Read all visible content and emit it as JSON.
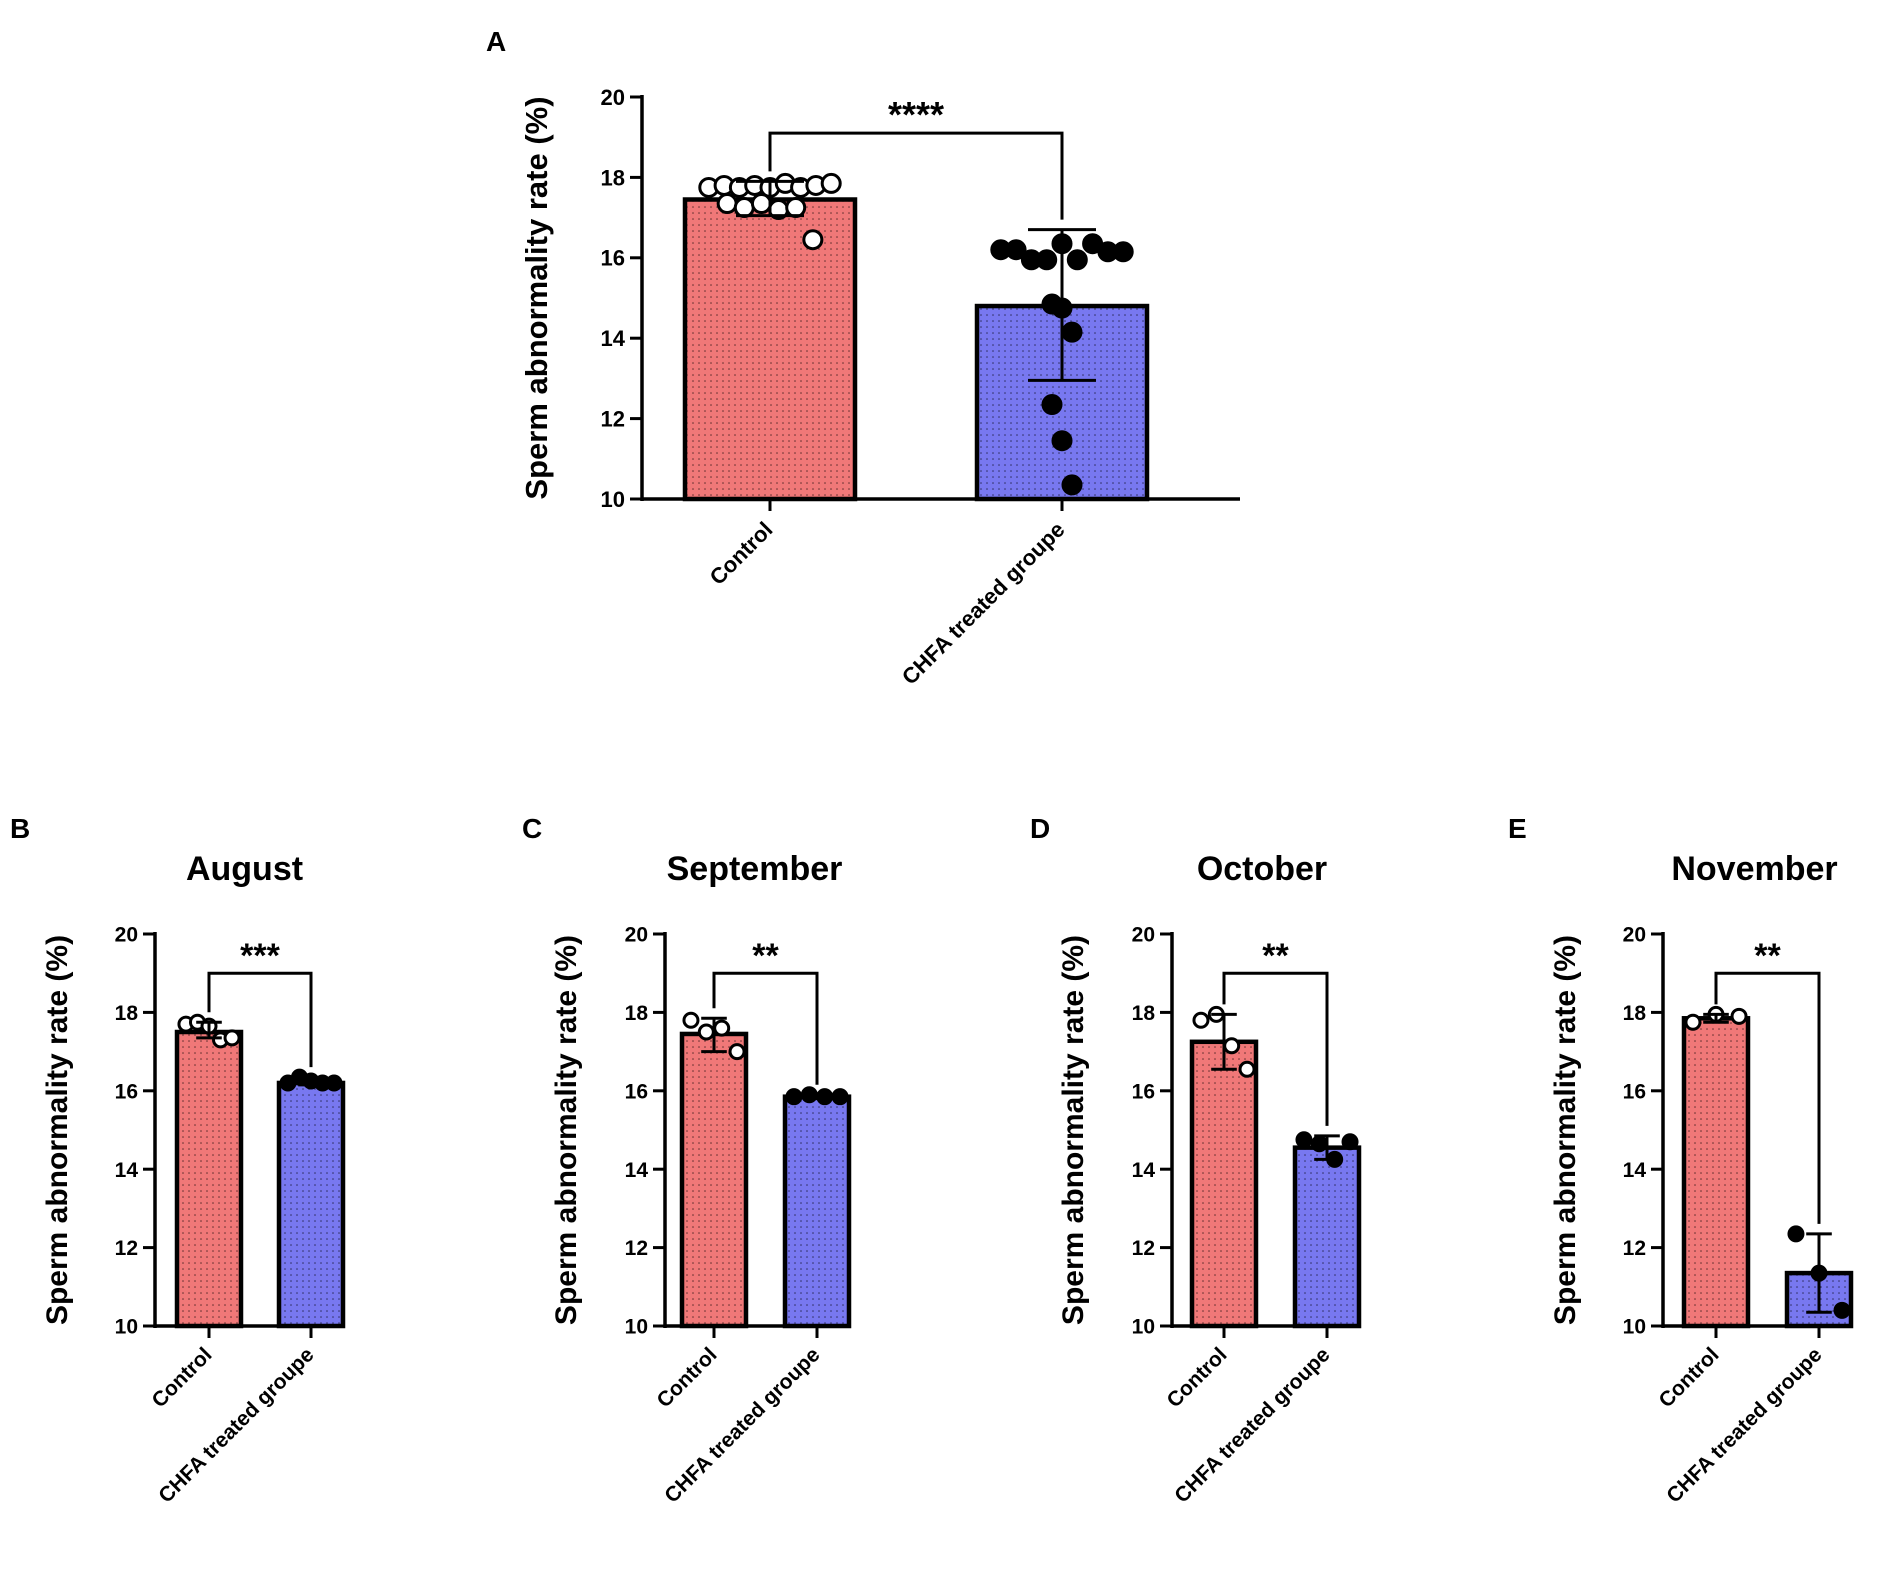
{
  "colors": {
    "control": "#f07878",
    "treated": "#7878f0",
    "axis": "#000000",
    "background": "#ffffff"
  },
  "chart_data": [
    {
      "panel": "A",
      "type": "bar",
      "title": "",
      "categories": [
        "Control",
        "CHFA treated groupe"
      ],
      "xlabel": "",
      "ylabel": "Sperm abnormality rate (%)",
      "ylim": [
        10,
        20
      ],
      "yticks": [
        "10",
        "12",
        "14",
        "16",
        "18",
        "20"
      ],
      "significance": "****",
      "series": [
        {
          "name": "Control",
          "mean": 17.45,
          "sd_low": 17.05,
          "sd_high": 17.9,
          "points": [
            17.75,
            17.8,
            17.75,
            17.8,
            17.75,
            17.85,
            17.75,
            17.8,
            17.85,
            17.35,
            17.25,
            17.35,
            17.2,
            17.25,
            16.45
          ]
        },
        {
          "name": "CHFA treated groupe",
          "mean": 14.8,
          "sd_low": 12.95,
          "sd_high": 16.7,
          "points": [
            16.2,
            16.2,
            15.95,
            15.95,
            16.35,
            15.95,
            16.35,
            16.15,
            16.15,
            14.85,
            14.75,
            14.15,
            12.35,
            11.45,
            10.35
          ]
        }
      ]
    },
    {
      "panel": "B",
      "type": "bar",
      "title": "August",
      "categories": [
        "Control",
        "CHFA treated groupe"
      ],
      "xlabel": "",
      "ylabel": "Sperm abnormality rate (%)",
      "ylim": [
        10,
        20
      ],
      "yticks": [
        "10",
        "12",
        "14",
        "16",
        "18",
        "20"
      ],
      "significance": "***",
      "series": [
        {
          "name": "Control",
          "mean": 17.5,
          "sd_low": 17.35,
          "sd_high": 17.75,
          "points": [
            17.7,
            17.75,
            17.65,
            17.3,
            17.35
          ]
        },
        {
          "name": "CHFA treated groupe",
          "mean": 16.2,
          "sd_low": 16.15,
          "sd_high": 16.3,
          "points": [
            16.2,
            16.35,
            16.25,
            16.2,
            16.2
          ]
        }
      ]
    },
    {
      "panel": "C",
      "type": "bar",
      "title": "September",
      "categories": [
        "Control",
        "CHFA treated groupe"
      ],
      "xlabel": "",
      "ylabel": "Sperm abnormality rate (%)",
      "ylim": [
        10,
        20
      ],
      "yticks": [
        "10",
        "12",
        "14",
        "16",
        "18",
        "20"
      ],
      "significance": "**",
      "series": [
        {
          "name": "Control",
          "mean": 17.45,
          "sd_low": 17.0,
          "sd_high": 17.85,
          "points": [
            17.8,
            17.5,
            17.6,
            17.0
          ]
        },
        {
          "name": "CHFA treated groupe",
          "mean": 15.85,
          "sd_low": 15.8,
          "sd_high": 15.9,
          "points": [
            15.85,
            15.9,
            15.85,
            15.85
          ]
        }
      ]
    },
    {
      "panel": "D",
      "type": "bar",
      "title": "October",
      "categories": [
        "Control",
        "CHFA treated groupe"
      ],
      "xlabel": "",
      "ylabel": "Sperm abnormality rate (%)",
      "ylim": [
        10,
        20
      ],
      "yticks": [
        "10",
        "12",
        "14",
        "16",
        "18",
        "20"
      ],
      "significance": "**",
      "series": [
        {
          "name": "Control",
          "mean": 17.25,
          "sd_low": 16.55,
          "sd_high": 17.95,
          "points": [
            17.8,
            17.95,
            17.15,
            16.55
          ]
        },
        {
          "name": "CHFA treated groupe",
          "mean": 14.55,
          "sd_low": 14.25,
          "sd_high": 14.85,
          "points": [
            14.75,
            14.65,
            14.25,
            14.7
          ]
        }
      ]
    },
    {
      "panel": "E",
      "type": "bar",
      "title": "November",
      "categories": [
        "Control",
        "CHFA treated groupe"
      ],
      "xlabel": "",
      "ylabel": "Sperm abnormality rate (%)",
      "ylim": [
        10,
        20
      ],
      "yticks": [
        "10",
        "12",
        "14",
        "16",
        "18",
        "20"
      ],
      "significance": "**",
      "series": [
        {
          "name": "Control",
          "mean": 17.85,
          "sd_low": 17.75,
          "sd_high": 17.95,
          "points": [
            17.75,
            17.95,
            17.9
          ]
        },
        {
          "name": "CHFA treated groupe",
          "mean": 11.35,
          "sd_low": 10.35,
          "sd_high": 12.35,
          "points": [
            12.35,
            11.35,
            10.4
          ]
        }
      ]
    }
  ]
}
